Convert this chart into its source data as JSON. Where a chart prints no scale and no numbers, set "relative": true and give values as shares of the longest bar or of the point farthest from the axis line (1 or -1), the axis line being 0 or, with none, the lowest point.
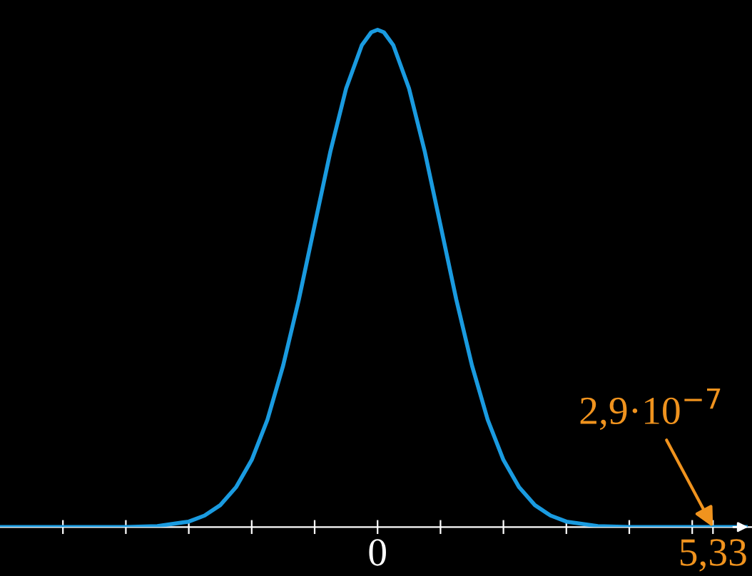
{
  "chart_data": {
    "type": "line",
    "relative": true,
    "x": [
      -6.0,
      -5.0,
      -4.5,
      -4.0,
      -3.5,
      -3.0,
      -2.75,
      -2.5,
      -2.25,
      -2.0,
      -1.75,
      -1.5,
      -1.25,
      -1.0,
      -0.75,
      -0.5,
      -0.25,
      -0.1,
      0.0,
      0.1,
      0.25,
      0.5,
      0.75,
      1.0,
      1.25,
      1.5,
      1.75,
      2.0,
      2.25,
      2.5,
      2.75,
      3.0,
      3.5,
      4.0,
      4.5,
      5.0,
      5.85
    ],
    "series": [
      {
        "color": "#1a9be0",
        "values": [
          0,
          0,
          0,
          0,
          0.002,
          0.011,
          0.023,
          0.044,
          0.08,
          0.135,
          0.216,
          0.325,
          0.458,
          0.607,
          0.755,
          0.882,
          0.969,
          0.995,
          1.0,
          0.995,
          0.969,
          0.882,
          0.755,
          0.607,
          0.458,
          0.325,
          0.216,
          0.135,
          0.08,
          0.044,
          0.023,
          0.011,
          0.002,
          0,
          0,
          0,
          0
        ]
      }
    ],
    "xlim": [
      -6.0,
      5.95
    ],
    "xticks": [
      {
        "value": -5,
        "label": null
      },
      {
        "value": -4,
        "label": null
      },
      {
        "value": -3,
        "label": null
      },
      {
        "value": -2,
        "label": null
      },
      {
        "value": -1,
        "label": null
      },
      0,
      {
        "value": 1,
        "label": null
      },
      {
        "value": 2,
        "label": null
      },
      {
        "value": 3,
        "label": null
      },
      {
        "value": 4,
        "label": null
      },
      {
        "value": 5,
        "label": null
      },
      {
        "value": 5.33,
        "label": "5,33"
      }
    ],
    "annotations": [
      {
        "text": "2,9·10$^{−7}$",
        "x": 5.33,
        "y": 0
      }
    ],
    "grid": false,
    "legend": false,
    "marker": "none",
    "line_style": "solid"
  }
}
